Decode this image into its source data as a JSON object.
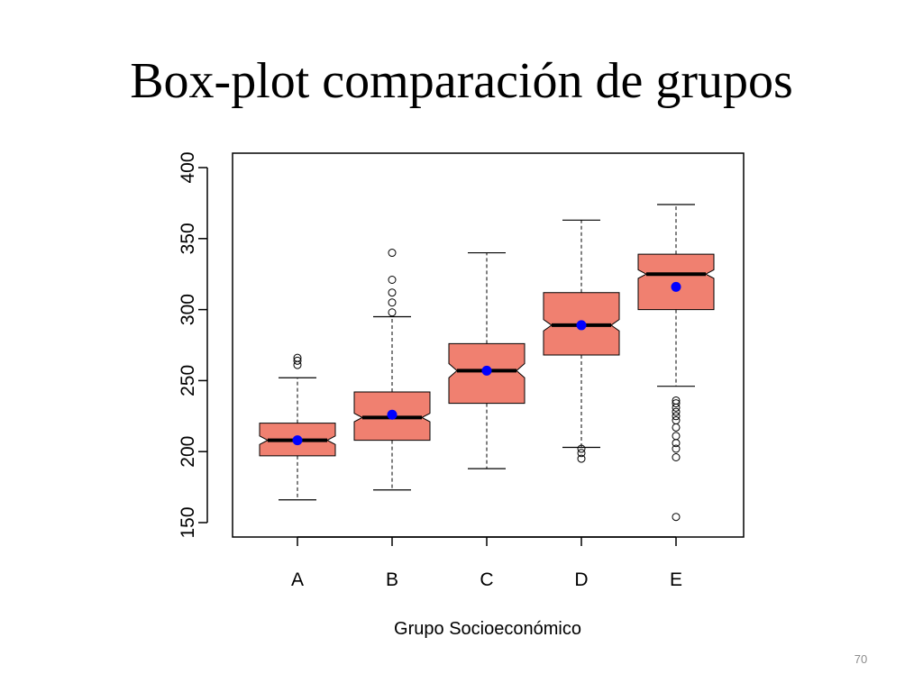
{
  "slide": {
    "title": "Box-plot comparación de grupos",
    "page_number": "70"
  },
  "colors": {
    "box_fill": "#f08070",
    "mean_point": "#0000ff",
    "outline": "#000000"
  },
  "chart_data": {
    "type": "boxplot",
    "notched": true,
    "title": "",
    "xlabel": "Grupo Socioeconómico",
    "ylabel": "",
    "ylim": [
      150,
      400
    ],
    "yticks": [
      150,
      200,
      250,
      300,
      350,
      400
    ],
    "grid": false,
    "categories": [
      "A",
      "B",
      "C",
      "D",
      "E"
    ],
    "groups": [
      {
        "name": "A",
        "whisker_low": 166,
        "q1": 197,
        "median": 208,
        "q3": 220,
        "whisker_high": 252,
        "mean": 208,
        "notch_low": 205,
        "notch_high": 211,
        "outliers": [
          261,
          264,
          266
        ]
      },
      {
        "name": "B",
        "whisker_low": 173,
        "q1": 208,
        "median": 224,
        "q3": 242,
        "whisker_high": 295,
        "mean": 226,
        "notch_low": 221,
        "notch_high": 227,
        "outliers": [
          298,
          305,
          312,
          321,
          340
        ]
      },
      {
        "name": "C",
        "whisker_low": 188,
        "q1": 234,
        "median": 257,
        "q3": 276,
        "whisker_high": 340,
        "mean": 257,
        "notch_low": 252,
        "notch_high": 262,
        "outliers": []
      },
      {
        "name": "D",
        "whisker_low": 203,
        "q1": 268,
        "median": 289,
        "q3": 312,
        "whisker_high": 363,
        "mean": 289,
        "notch_low": 285,
        "notch_high": 293,
        "outliers": [
          195,
          199,
          202
        ]
      },
      {
        "name": "E",
        "whisker_low": 246,
        "q1": 300,
        "median": 325,
        "q3": 339,
        "whisker_high": 374,
        "mean": 316,
        "notch_low": 322,
        "notch_high": 328,
        "outliers": [
          154,
          196,
          202,
          206,
          211,
          217,
          222,
          225,
          228,
          231,
          234,
          236
        ]
      }
    ]
  }
}
